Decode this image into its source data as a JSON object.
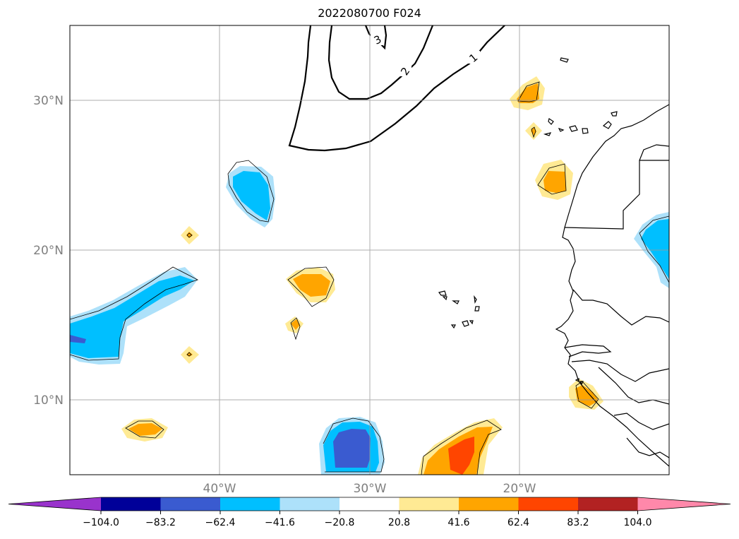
{
  "title": "2022080700 F024",
  "map": {
    "projection": "lat-lon",
    "lon_range": [
      -50,
      -10
    ],
    "lat_range": [
      5,
      35
    ],
    "lat_ticks": [
      {
        "value": 30,
        "label": "30°N"
      },
      {
        "value": 20,
        "label": "20°N"
      },
      {
        "value": 10,
        "label": "10°N"
      }
    ],
    "lon_ticks": [
      {
        "value": -40,
        "label": "40°W"
      },
      {
        "value": -30,
        "label": "30°W"
      },
      {
        "value": -20,
        "label": "20°W"
      }
    ],
    "grid": true,
    "contour_labels": [
      "3",
      "2",
      "1"
    ]
  },
  "colorbar": {
    "ticks": [
      "−104.0",
      "−83.2",
      "−62.4",
      "−41.6",
      "−20.8",
      "20.8",
      "41.6",
      "62.4",
      "83.2",
      "104.0"
    ],
    "colors": [
      "#9933cc",
      "#000099",
      "#3a5bd0",
      "#00bfff",
      "#ade1fa",
      "#ffffff",
      "#ffea94",
      "#ffa500",
      "#ff4500",
      "#b22222",
      "#ff88aa"
    ],
    "extend": "both"
  },
  "colors": {
    "blue_light": "#ade1fa",
    "blue": "#00bfff",
    "blue_dark": "#3a5bd0",
    "yellow": "#ffea94",
    "orange": "#ffa500",
    "red_orange": "#ff4500"
  }
}
